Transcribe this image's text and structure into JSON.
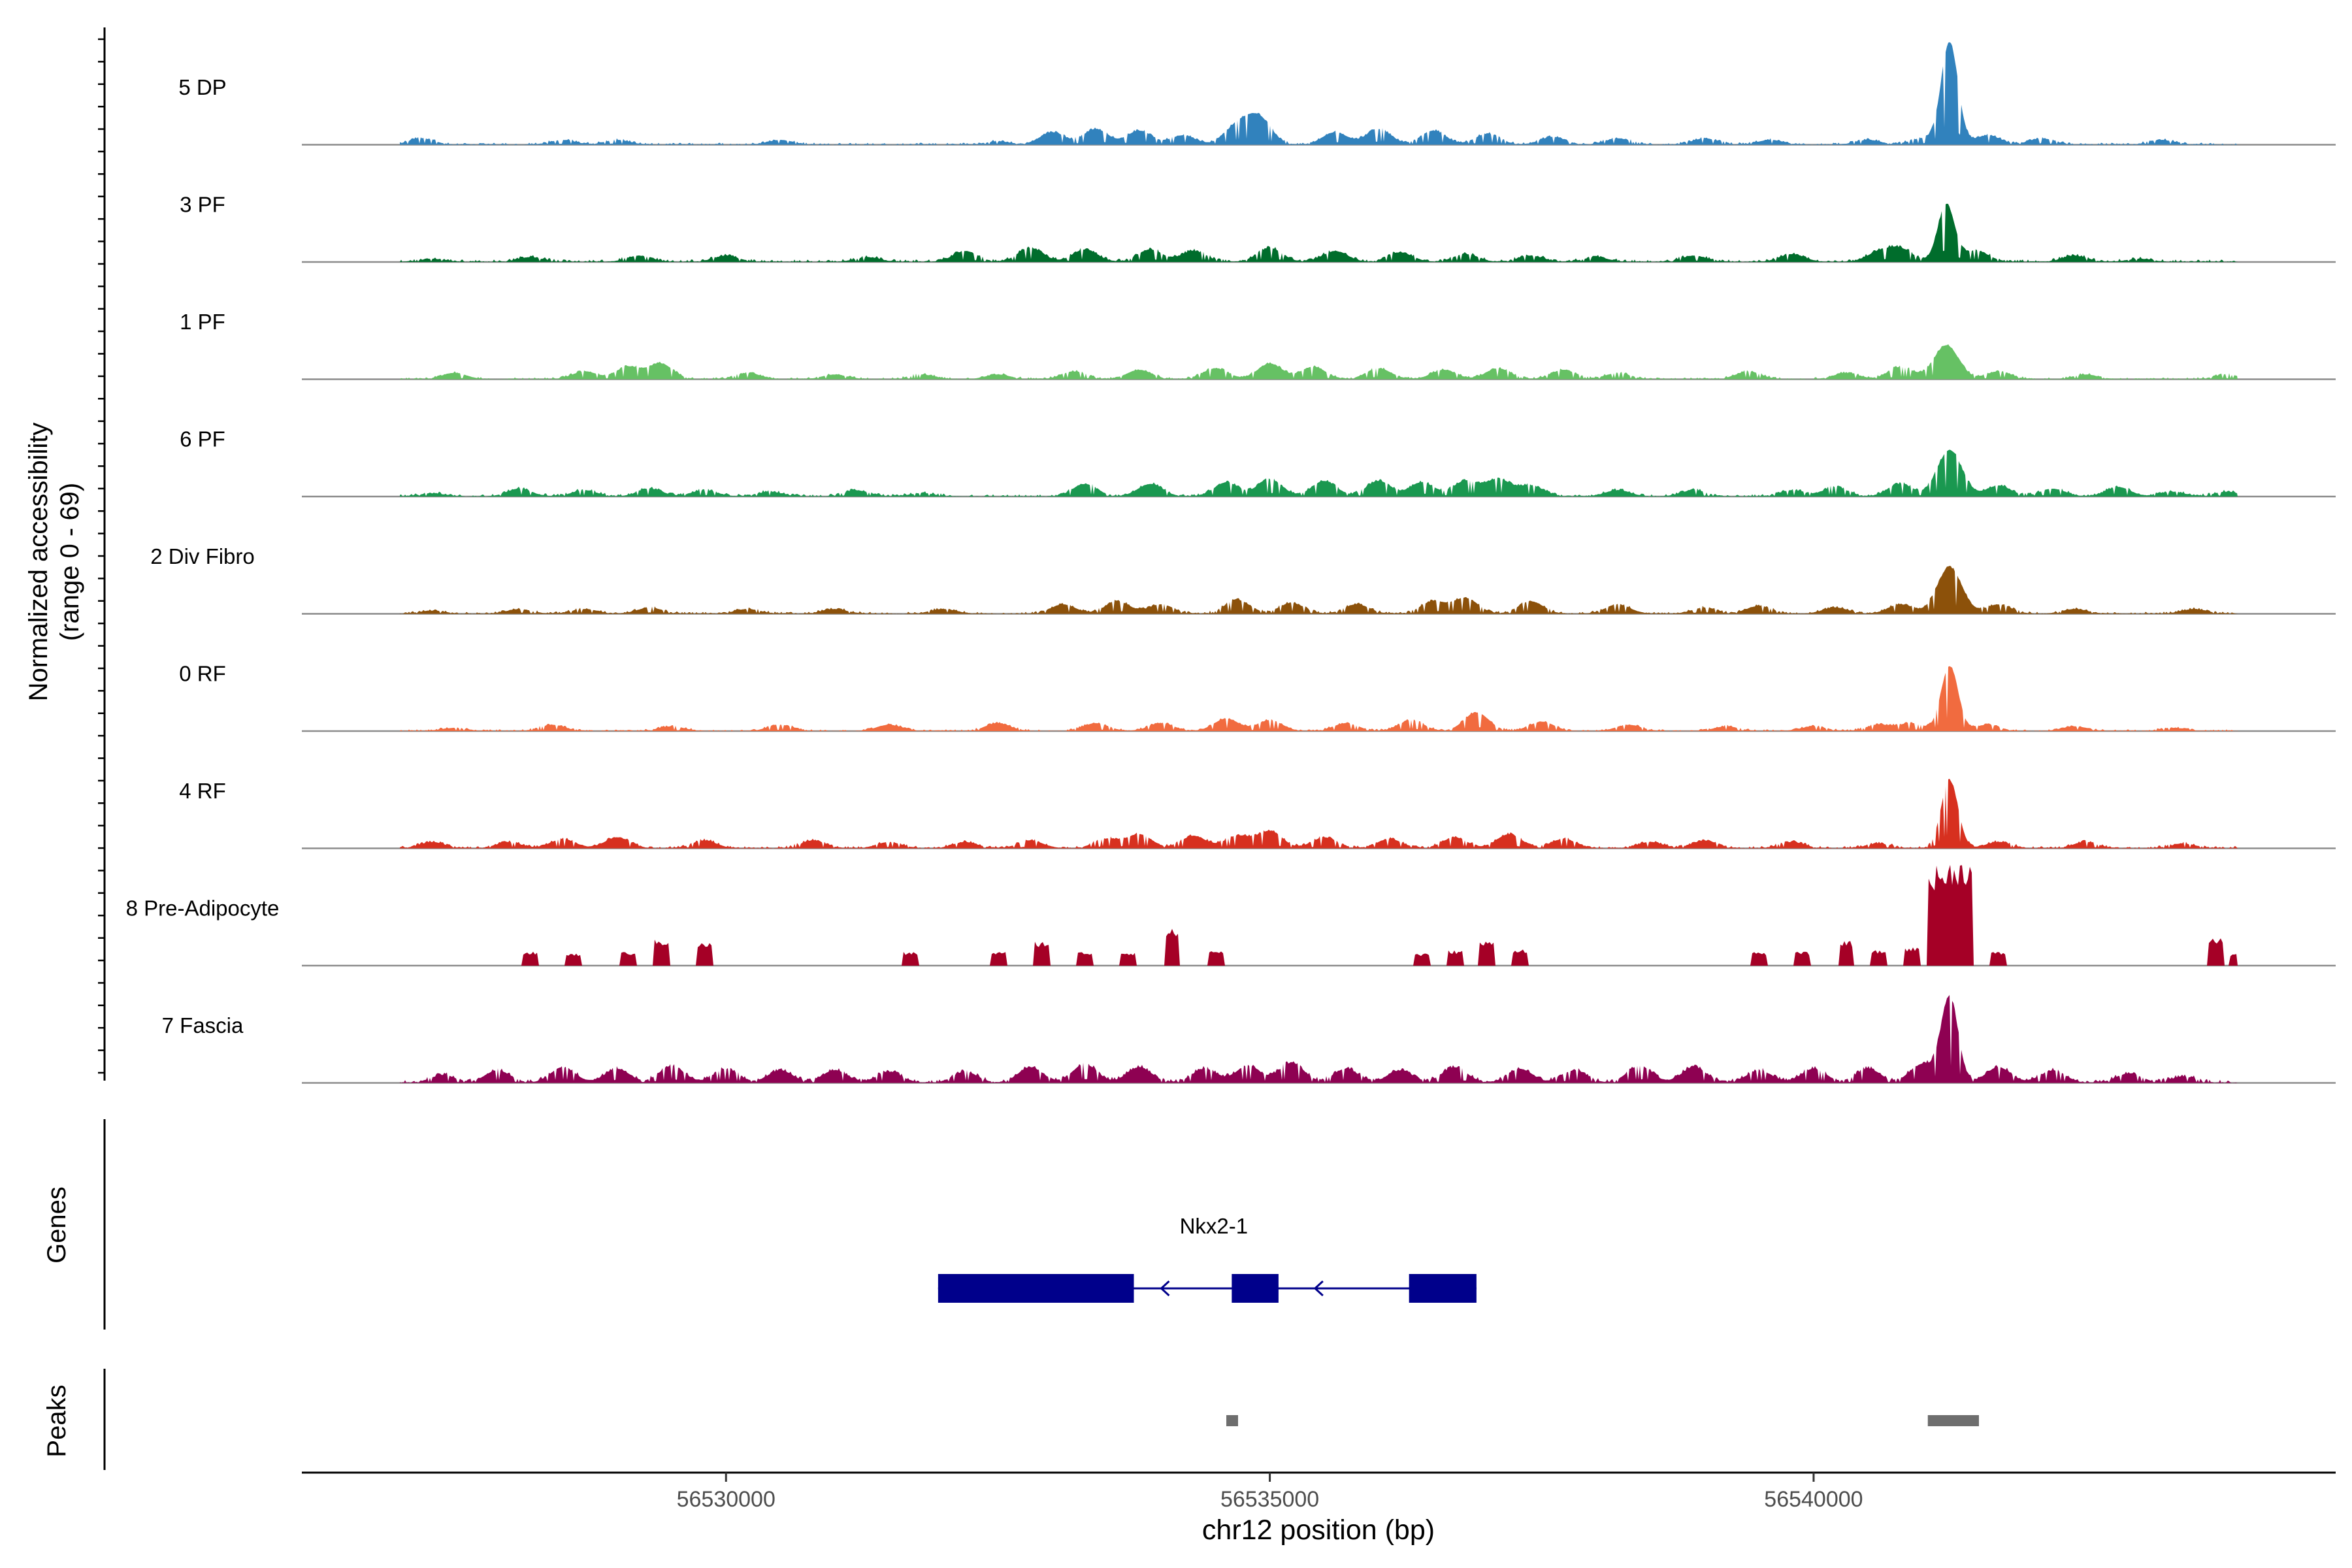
{
  "chart_data": {
    "type": "area",
    "title": "",
    "ylabel": "Normalized accessibility",
    "ylabel2": "(range 0 - 69)",
    "xlabel": "chr12 position (bp)",
    "chromosome": "chr12",
    "ylim": [
      0,
      69
    ],
    "xlim": [
      56526100,
      56544800
    ],
    "x_ticks": [
      56530000,
      56535000,
      56540000
    ],
    "x_tick_labels": [
      "56530000",
      "56535000",
      "56540000"
    ],
    "signal_range": [
      56527000,
      56543900
    ],
    "tracks": [
      {
        "name": "5 DP",
        "color": "#3182bd",
        "peaks": [
          [
            56527200,
            4
          ],
          [
            56528500,
            3
          ],
          [
            56529000,
            3
          ],
          [
            56530500,
            3
          ],
          [
            56532500,
            2
          ],
          [
            56533000,
            8
          ],
          [
            56533400,
            10
          ],
          [
            56533800,
            9
          ],
          [
            56534200,
            6
          ],
          [
            56534700,
            12
          ],
          [
            56534900,
            17
          ],
          [
            56535600,
            8
          ],
          [
            56536000,
            10
          ],
          [
            56536500,
            9
          ],
          [
            56537000,
            7
          ],
          [
            56537600,
            5
          ],
          [
            56538200,
            4
          ],
          [
            56539000,
            4
          ],
          [
            56539600,
            3
          ],
          [
            56540500,
            3
          ],
          [
            56541000,
            4
          ],
          [
            56541250,
            66
          ],
          [
            56541600,
            6
          ],
          [
            56542100,
            4
          ],
          [
            56543200,
            3
          ]
        ],
        "noise": 1.3
      },
      {
        "name": "3 PF",
        "color": "#006d2c",
        "peaks": [
          [
            56527300,
            2
          ],
          [
            56528200,
            3
          ],
          [
            56529200,
            4
          ],
          [
            56530000,
            4
          ],
          [
            56531300,
            3
          ],
          [
            56532200,
            7
          ],
          [
            56532800,
            9
          ],
          [
            56533300,
            8
          ],
          [
            56533900,
            8
          ],
          [
            56534300,
            7
          ],
          [
            56535000,
            9
          ],
          [
            56535600,
            7
          ],
          [
            56536200,
            6
          ],
          [
            56536800,
            5
          ],
          [
            56537400,
            4
          ],
          [
            56538000,
            3
          ],
          [
            56538900,
            4
          ],
          [
            56539800,
            5
          ],
          [
            56540600,
            6
          ],
          [
            56540800,
            8
          ],
          [
            56541220,
            37
          ],
          [
            56541500,
            7
          ],
          [
            56542400,
            4
          ],
          [
            56543000,
            2
          ]
        ],
        "noise": 1.6
      },
      {
        "name": "1 PF",
        "color": "#66c164",
        "peaks": [
          [
            56527500,
            4
          ],
          [
            56528700,
            5
          ],
          [
            56529100,
            8
          ],
          [
            56529400,
            10
          ],
          [
            56530200,
            4
          ],
          [
            56531000,
            3
          ],
          [
            56531800,
            3
          ],
          [
            56532500,
            3
          ],
          [
            56533200,
            5
          ],
          [
            56533800,
            6
          ],
          [
            56534500,
            7
          ],
          [
            56535000,
            10
          ],
          [
            56535400,
            8
          ],
          [
            56536000,
            7
          ],
          [
            56536600,
            6
          ],
          [
            56537100,
            7
          ],
          [
            56537700,
            6
          ],
          [
            56538200,
            4
          ],
          [
            56539400,
            5
          ],
          [
            56540300,
            4
          ],
          [
            56540800,
            8
          ],
          [
            56541220,
            22
          ],
          [
            56541700,
            5
          ],
          [
            56542500,
            3
          ],
          [
            56543800,
            3
          ]
        ],
        "noise": 1.2
      },
      {
        "name": "6 PF",
        "color": "#1a9850",
        "peaks": [
          [
            56527300,
            2
          ],
          [
            56528100,
            5
          ],
          [
            56528700,
            4
          ],
          [
            56529300,
            5
          ],
          [
            56529800,
            4
          ],
          [
            56530400,
            3
          ],
          [
            56531200,
            4
          ],
          [
            56531800,
            2
          ],
          [
            56533300,
            8
          ],
          [
            56533900,
            8
          ],
          [
            56534600,
            9
          ],
          [
            56535000,
            11
          ],
          [
            56535500,
            10
          ],
          [
            56536000,
            10
          ],
          [
            56536400,
            9
          ],
          [
            56536800,
            10
          ],
          [
            56537100,
            11
          ],
          [
            56537400,
            7
          ],
          [
            56538200,
            4
          ],
          [
            56538900,
            4
          ],
          [
            56539800,
            4
          ],
          [
            56540200,
            6
          ],
          [
            56540800,
            8
          ],
          [
            56541250,
            30
          ],
          [
            56541700,
            7
          ],
          [
            56542200,
            5
          ],
          [
            56542800,
            6
          ],
          [
            56543300,
            3
          ],
          [
            56543800,
            3
          ]
        ],
        "noise": 1.5
      },
      {
        "name": "2 Div Fibro",
        "color": "#8c510a",
        "peaks": [
          [
            56527300,
            2
          ],
          [
            56528100,
            3
          ],
          [
            56528700,
            3
          ],
          [
            56529300,
            4
          ],
          [
            56530200,
            3
          ],
          [
            56531000,
            3
          ],
          [
            56532000,
            3
          ],
          [
            56533100,
            6
          ],
          [
            56533600,
            8
          ],
          [
            56534000,
            6
          ],
          [
            56534700,
            9
          ],
          [
            56535200,
            7
          ],
          [
            56535800,
            6
          ],
          [
            56536500,
            8
          ],
          [
            56536800,
            10
          ],
          [
            56537400,
            8
          ],
          [
            56538200,
            6
          ],
          [
            56539000,
            4
          ],
          [
            56539500,
            5
          ],
          [
            56540200,
            4
          ],
          [
            56540800,
            6
          ],
          [
            56541250,
            30
          ],
          [
            56541700,
            6
          ],
          [
            56542400,
            3
          ],
          [
            56543500,
            3
          ]
        ],
        "noise": 1.3
      },
      {
        "name": "0 RF",
        "color": "#f16b3f",
        "peaks": [
          [
            56527500,
            2
          ],
          [
            56528400,
            4
          ],
          [
            56529500,
            3
          ],
          [
            56530500,
            4
          ],
          [
            56531500,
            4
          ],
          [
            56532500,
            5
          ],
          [
            56533400,
            5
          ],
          [
            56534000,
            5
          ],
          [
            56534600,
            8
          ],
          [
            56535000,
            7
          ],
          [
            56535700,
            5
          ],
          [
            56536300,
            7
          ],
          [
            56536900,
            12
          ],
          [
            56537500,
            6
          ],
          [
            56538300,
            4
          ],
          [
            56539200,
            3
          ],
          [
            56540000,
            3
          ],
          [
            56540600,
            4
          ],
          [
            56540900,
            5
          ],
          [
            56541250,
            42
          ],
          [
            56541600,
            4
          ],
          [
            56542400,
            3
          ],
          [
            56543300,
            2
          ]
        ],
        "noise": 1.1
      },
      {
        "name": "4 RF",
        "color": "#d7301f",
        "peaks": [
          [
            56527300,
            4
          ],
          [
            56528000,
            4
          ],
          [
            56528500,
            6
          ],
          [
            56529000,
            7
          ],
          [
            56529800,
            5
          ],
          [
            56530800,
            5
          ],
          [
            56531500,
            4
          ],
          [
            56532200,
            4
          ],
          [
            56532800,
            5
          ],
          [
            56533500,
            6
          ],
          [
            56533800,
            9
          ],
          [
            56534300,
            8
          ],
          [
            56534700,
            8
          ],
          [
            56535000,
            11
          ],
          [
            56535500,
            7
          ],
          [
            56536100,
            6
          ],
          [
            56536700,
            7
          ],
          [
            56537200,
            9
          ],
          [
            56537700,
            6
          ],
          [
            56538500,
            4
          ],
          [
            56539000,
            5
          ],
          [
            56539800,
            4
          ],
          [
            56540600,
            3
          ],
          [
            56541250,
            44
          ],
          [
            56541700,
            4
          ],
          [
            56542500,
            4
          ],
          [
            56543400,
            3
          ]
        ],
        "noise": 1.4
      },
      {
        "name": "8 Pre-Adipocyte",
        "color": "#a50026",
        "peaks": [
          [
            56528200,
            9
          ],
          [
            56528600,
            8
          ],
          [
            56529100,
            9
          ],
          [
            56529400,
            17
          ],
          [
            56529800,
            15
          ],
          [
            56530000,
            0
          ],
          [
            56531700,
            9
          ],
          [
            56532500,
            9
          ],
          [
            56532900,
            16
          ],
          [
            56533300,
            9
          ],
          [
            56533700,
            9
          ],
          [
            56534100,
            24
          ],
          [
            56534500,
            10
          ],
          [
            56536400,
            8
          ],
          [
            56536700,
            10
          ],
          [
            56537000,
            16
          ],
          [
            56537300,
            11
          ],
          [
            56539500,
            9
          ],
          [
            56539900,
            9
          ],
          [
            56540300,
            16
          ],
          [
            56540600,
            10
          ],
          [
            56540900,
            12
          ],
          [
            56541150,
            65
          ],
          [
            56541350,
            69
          ],
          [
            56541700,
            9
          ],
          [
            56543700,
            18
          ],
          [
            56543900,
            8
          ]
        ],
        "noise": 0
      },
      {
        "name": "7 Fascia",
        "color": "#8e0152",
        "peaks": [
          [
            56527400,
            5
          ],
          [
            56527900,
            8
          ],
          [
            56528500,
            10
          ],
          [
            56529000,
            9
          ],
          [
            56529500,
            11
          ],
          [
            56530000,
            9
          ],
          [
            56530500,
            8
          ],
          [
            56531000,
            8
          ],
          [
            56531500,
            7
          ],
          [
            56532200,
            7
          ],
          [
            56532800,
            10
          ],
          [
            56533300,
            12
          ],
          [
            56533800,
            10
          ],
          [
            56534400,
            9
          ],
          [
            56534800,
            11
          ],
          [
            56535200,
            13
          ],
          [
            56535700,
            9
          ],
          [
            56536200,
            8
          ],
          [
            56536700,
            10
          ],
          [
            56537300,
            9
          ],
          [
            56537800,
            8
          ],
          [
            56538400,
            11
          ],
          [
            56538900,
            10
          ],
          [
            56539500,
            8
          ],
          [
            56540000,
            9
          ],
          [
            56540500,
            9
          ],
          [
            56541000,
            12
          ],
          [
            56541250,
            55
          ],
          [
            56541700,
            10
          ],
          [
            56542200,
            8
          ],
          [
            56542900,
            6
          ],
          [
            56543400,
            4
          ]
        ],
        "noise": 2.0
      }
    ],
    "genes": [
      {
        "name": "Nkx2-1",
        "strand": "-",
        "start": 56531950,
        "end": 56536900,
        "exons": [
          [
            56531950,
            56533750
          ],
          [
            56534650,
            56535080
          ],
          [
            56536280,
            56536900
          ]
        ],
        "color": "#00008b"
      }
    ],
    "peaks_track": [
      [
        56534600,
        56534700
      ],
      [
        56541050,
        56541520
      ]
    ],
    "peak_color": "#6e6e6e",
    "gene_track_label": "Genes",
    "peak_track_label": "Peaks"
  }
}
